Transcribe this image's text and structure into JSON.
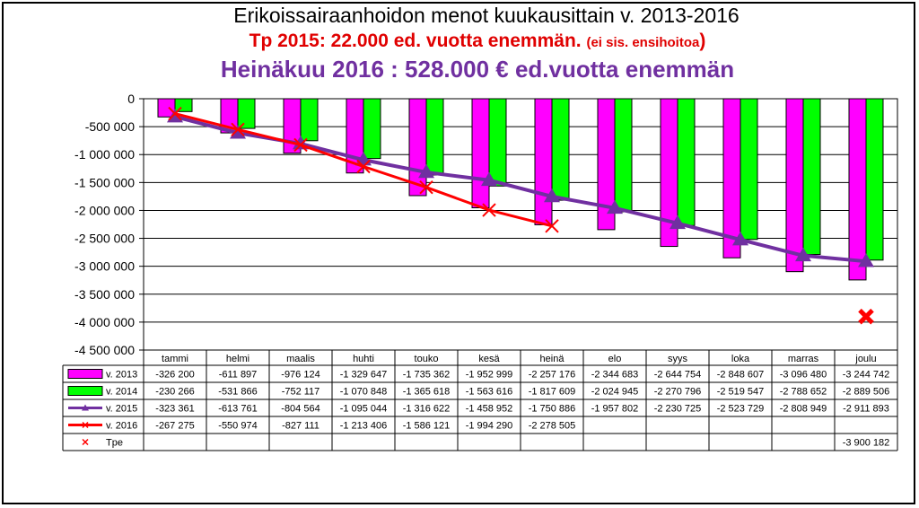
{
  "titles": {
    "line1": "Erikoissairaanhoidon menot kuukausittain v. 2013-2016",
    "line2_main": "Tp 2015: 22.000 ed. vuotta enemmän.",
    "line2_note": "(ei sis. ensihoitoa",
    "line2_close": ")",
    "line3": "Heinäkuu 2016 : 528.000 € ed.vuotta enemmän"
  },
  "colors": {
    "v2013": "#ff00ff",
    "v2014": "#00ff00",
    "v2015": "#7030a0",
    "v2016": "#ff0000",
    "tpe": "#ff0000"
  },
  "chart_data": {
    "type": "bar",
    "categories": [
      "tammi",
      "helmi",
      "maalis",
      "huhti",
      "touko",
      "kesä",
      "heinä",
      "elo",
      "syys",
      "loka",
      "marras",
      "joulu"
    ],
    "ylim": [
      -4500000,
      0
    ],
    "ytick_labels": [
      "0",
      "-500 000",
      "-1 000 000",
      "-1 500 000",
      "-2 000 000",
      "-2 500 000",
      "-3 000 000",
      "-3 500 000",
      "-4 000 000",
      "-4 500 000"
    ],
    "yticks": [
      0,
      -500000,
      -1000000,
      -1500000,
      -2000000,
      -2500000,
      -3000000,
      -3500000,
      -4000000,
      -4500000
    ],
    "grid": true,
    "series": [
      {
        "name": "v. 2013",
        "kind": "bar",
        "color": "#ff00ff",
        "values": [
          -326200,
          -611897,
          -976124,
          -1329647,
          -1735362,
          -1952999,
          -2257176,
          -2344683,
          -2644754,
          -2848607,
          -3096480,
          -3244742
        ],
        "labels": [
          "-326 200",
          "-611 897",
          "-976 124",
          "-1 329 647",
          "-1 735 362",
          "-1 952 999",
          "-2 257 176",
          "-2 344 683",
          "-2 644 754",
          "-2 848 607",
          "-3 096 480",
          "-3 244 742"
        ]
      },
      {
        "name": "v. 2014",
        "kind": "bar",
        "color": "#00ff00",
        "values": [
          -230266,
          -531866,
          -752117,
          -1070848,
          -1365618,
          -1563616,
          -1817609,
          -2024945,
          -2270796,
          -2519547,
          -2788652,
          -2889506
        ],
        "labels": [
          "-230 266",
          "-531 866",
          "-752 117",
          "-1 070 848",
          "-1 365 618",
          "-1 563 616",
          "-1 817 609",
          "-2 024 945",
          "-2 270 796",
          "-2 519 547",
          "-2 788 652",
          "-2 889 506"
        ]
      },
      {
        "name": "v. 2015",
        "kind": "line",
        "color": "#7030a0",
        "values": [
          -323361,
          -613761,
          -804564,
          -1095044,
          -1316622,
          -1458952,
          -1750886,
          -1957802,
          -2230725,
          -2523729,
          -2808949,
          -2911893
        ],
        "labels": [
          "-323 361",
          "-613 761",
          "-804 564",
          "-1 095 044",
          "-1 316 622",
          "-1 458 952",
          "-1 750 886",
          "-1 957 802",
          "-2 230 725",
          "-2 523 729",
          "-2 808 949",
          "-2 911 893"
        ]
      },
      {
        "name": "v. 2016",
        "kind": "line",
        "color": "#ff0000",
        "values": [
          -267275,
          -550974,
          -827111,
          -1213406,
          -1586121,
          -1994290,
          -2278505,
          null,
          null,
          null,
          null,
          null
        ],
        "labels": [
          "-267 275",
          "-550 974",
          "-827 111",
          "-1 213 406",
          "-1 586 121",
          "-1 994 290",
          "-2 278 505",
          "",
          "",
          "",
          "",
          ""
        ]
      },
      {
        "name": "Tpe",
        "kind": "marker",
        "color": "#ff0000",
        "values": [
          null,
          null,
          null,
          null,
          null,
          null,
          null,
          null,
          null,
          null,
          null,
          -3900182
        ],
        "labels": [
          "",
          "",
          "",
          "",
          "",
          "",
          "",
          "",
          "",
          "",
          "",
          "-3 900 182"
        ]
      }
    ]
  }
}
